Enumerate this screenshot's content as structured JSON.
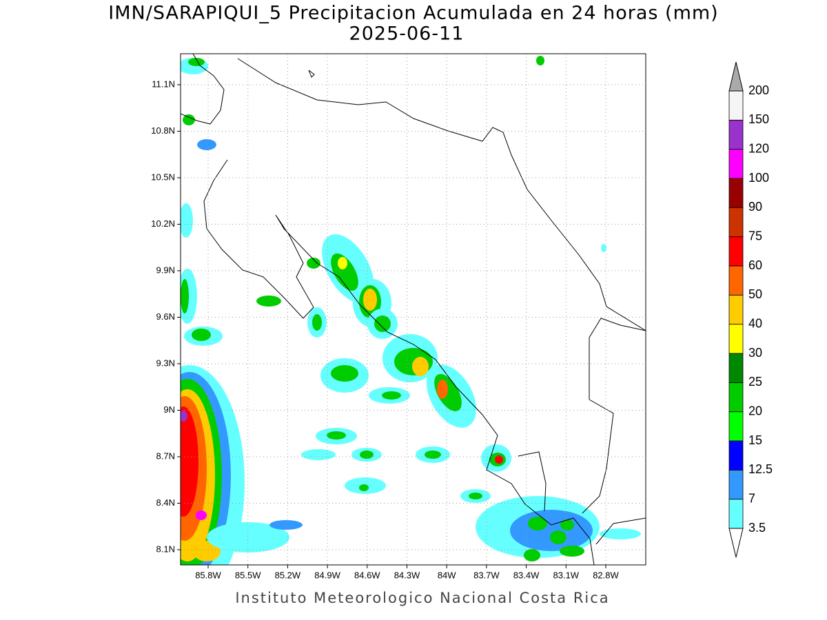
{
  "title": "IMN/SARAPIQUI_5 Precipitacion Acumulada en 24 horas (mm)",
  "date": "2025-06-11",
  "map": {
    "lat_labels": [
      "11.1N",
      "10.8N",
      "10.5N",
      "10.2N",
      "9.9N",
      "9.6N",
      "9.3N",
      "9N",
      "8.7N",
      "8.4N",
      "8.1N"
    ],
    "lon_labels": [
      "85.8W",
      "85.5W",
      "85.2W",
      "84.9W",
      "84.6W",
      "84.3W",
      "84W",
      "83.7W",
      "83.4W",
      "83.1W",
      "82.8W"
    ]
  },
  "colorbar": {
    "levels": [
      3.5,
      7,
      12.5,
      15,
      20,
      25,
      30,
      40,
      50,
      60,
      75,
      90,
      100,
      120,
      150,
      200
    ],
    "colors": [
      "#66ffff",
      "#3399ff",
      "#0000ff",
      "#00ff00",
      "#00cc00",
      "#008800",
      "#ffff00",
      "#ffcc00",
      "#ff6600",
      "#ff0000",
      "#cc3300",
      "#990000",
      "#ff00ff",
      "#9933cc",
      "#f5f5f5"
    ],
    "over_color": "#aaaaaa",
    "under_color": "#ffffff"
  },
  "footer": "Instituto Meteorologico Nacional Costa Rica"
}
